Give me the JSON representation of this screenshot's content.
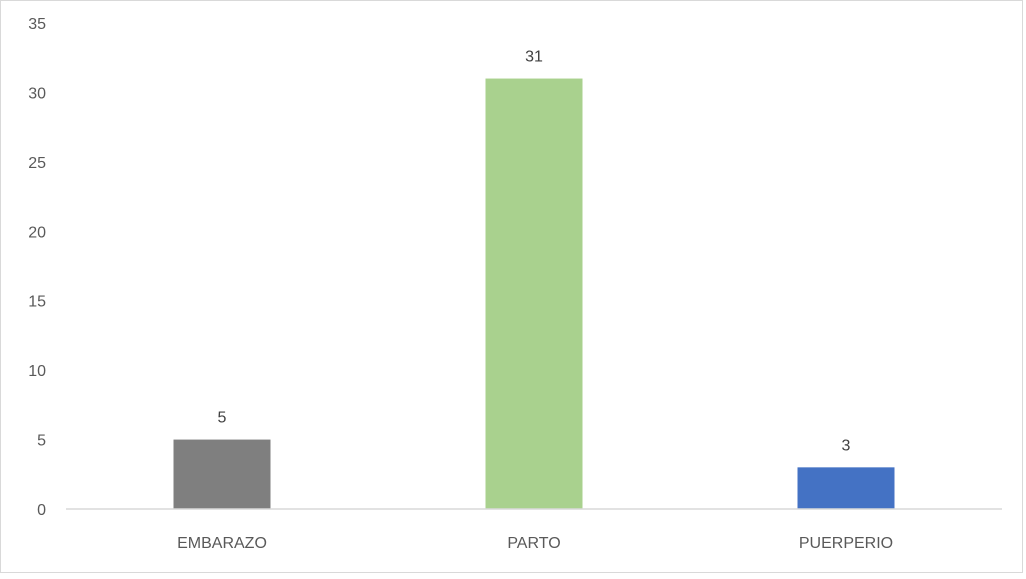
{
  "chart_data": {
    "type": "bar",
    "title": "",
    "xlabel": "",
    "ylabel": "",
    "categories": [
      "EMBARAZO",
      "PARTO",
      "PUERPERIO"
    ],
    "values": [
      5,
      31,
      3
    ],
    "bar_colors": [
      "#7f7f7f",
      "#a9d18e",
      "#4472c4"
    ],
    "data_labels": [
      "5",
      "31",
      "3"
    ],
    "ylim": [
      0,
      35
    ],
    "yticks": [
      "0",
      "5",
      "10",
      "15",
      "20",
      "25",
      "30",
      "35"
    ],
    "grid": false,
    "legend": "none"
  }
}
